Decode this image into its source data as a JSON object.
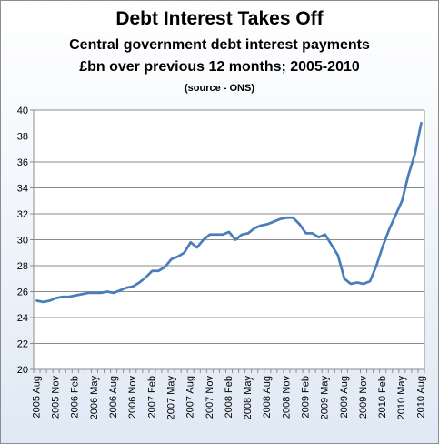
{
  "chart_data": {
    "type": "line",
    "title": "Debt Interest Takes Off",
    "subtitle": [
      "Central government debt interest payments",
      "£bn over previous 12 months; 2005-2010"
    ],
    "source": "(source - ONS)",
    "xlabel": "",
    "ylabel": "",
    "ylim": [
      20,
      40
    ],
    "yticks": [
      20,
      22,
      24,
      26,
      28,
      30,
      32,
      34,
      36,
      38,
      40
    ],
    "grid": true,
    "legend": "none",
    "line_color": "#4a7ebb",
    "x": [
      "2005 Aug",
      "2005 Sep",
      "2005 Oct",
      "2005 Nov",
      "2005 Dec",
      "2006 Jan",
      "2006 Feb",
      "2006 Mar",
      "2006 Apr",
      "2006 May",
      "2006 Jun",
      "2006 Jul",
      "2006 Aug",
      "2006 Sep",
      "2006 Oct",
      "2006 Nov",
      "2006 Dec",
      "2007 Jan",
      "2007 Feb",
      "2007 Mar",
      "2007 Apr",
      "2007 May",
      "2007 Jun",
      "2007 Jul",
      "2007 Aug",
      "2007 Sep",
      "2007 Oct",
      "2007 Nov",
      "2007 Dec",
      "2008 Jan",
      "2008 Feb",
      "2008 Mar",
      "2008 Apr",
      "2008 May",
      "2008 Jun",
      "2008 Jul",
      "2008 Aug",
      "2008 Sep",
      "2008 Oct",
      "2008 Nov",
      "2008 Dec",
      "2009 Jan",
      "2009 Feb",
      "2009 Mar",
      "2009 Apr",
      "2009 May",
      "2009 Jun",
      "2009 Jul",
      "2009 Aug",
      "2009 Sep",
      "2009 Oct",
      "2009 Nov",
      "2009 Dec",
      "2010 Jan",
      "2010 Feb",
      "2010 Mar",
      "2010 Apr",
      "2010 May",
      "2010 Jun",
      "2010 Jul",
      "2010 Aug"
    ],
    "tick_labels": [
      "2005 Aug",
      "2005 Nov",
      "2006 Feb",
      "2006 May",
      "2006 Aug",
      "2006 Nov",
      "2007 Feb",
      "2007 May",
      "2007 Aug",
      "2007 Nov",
      "2008 Feb",
      "2008 May",
      "2008 Aug",
      "2008 Nov",
      "2009 Feb",
      "2009 May",
      "2009 Aug",
      "2009 Nov",
      "2010 Feb",
      "2010 May",
      "2010 Aug"
    ],
    "values": [
      25.3,
      25.2,
      25.3,
      25.5,
      25.6,
      25.6,
      25.7,
      25.8,
      25.9,
      25.9,
      25.9,
      26.0,
      25.9,
      26.1,
      26.3,
      26.4,
      26.7,
      27.1,
      27.6,
      27.6,
      27.9,
      28.5,
      28.7,
      29.0,
      29.8,
      29.4,
      30.0,
      30.4,
      30.4,
      30.4,
      30.6,
      30.0,
      30.4,
      30.5,
      30.9,
      31.1,
      31.2,
      31.4,
      31.6,
      31.7,
      31.7,
      31.2,
      30.5,
      30.5,
      30.2,
      30.4,
      29.6,
      28.8,
      27.0,
      26.6,
      26.7,
      26.6,
      26.8,
      28.0,
      29.5,
      30.8,
      31.9,
      33.0,
      35.0,
      36.6,
      39.0
    ]
  }
}
